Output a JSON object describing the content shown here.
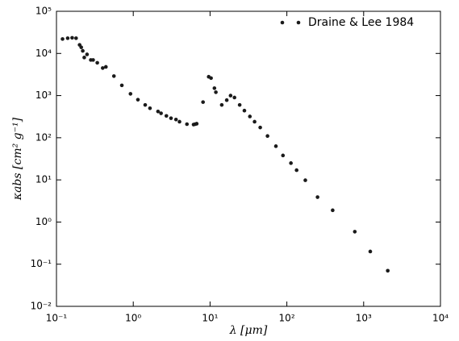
{
  "chart_data": {
    "type": "scatter",
    "xlabel": "λ [μm]",
    "ylabel": "κabs [cm² g⁻¹]",
    "log_x": true,
    "log_y": true,
    "legend": "upper right",
    "series": [
      {
        "name": "Draine & Lee 1984",
        "color": "#1a1a1a",
        "x": [
          0.12,
          0.14,
          0.16,
          0.18,
          0.2,
          0.21,
          0.22,
          0.23,
          0.25,
          0.28,
          0.3,
          0.34,
          0.4,
          0.44,
          0.56,
          0.71,
          0.92,
          1.15,
          1.43,
          1.65,
          2.1,
          2.3,
          2.7,
          3.1,
          3.6,
          4.0,
          5.0,
          6.1,
          6.4,
          6.7,
          8.1,
          9.6,
          10.3,
          11.4,
          11.9,
          14.2,
          16.5,
          18.5,
          20.8,
          24.3,
          28,
          33,
          38,
          45,
          56,
          72,
          89,
          113,
          134,
          174,
          251,
          395,
          767,
          1220,
          2060
        ],
        "values": [
          22000,
          23000,
          23500,
          23000,
          16000,
          14000,
          11500,
          8000,
          9500,
          7000,
          7000,
          6000,
          4500,
          4800,
          2900,
          1750,
          1100,
          800,
          600,
          500,
          420,
          380,
          330,
          290,
          270,
          240,
          210,
          205,
          210,
          215,
          700,
          2800,
          2600,
          1500,
          1200,
          600,
          780,
          1000,
          900,
          600,
          440,
          320,
          240,
          175,
          110,
          63,
          38,
          25,
          17,
          9.8,
          3.9,
          1.9,
          0.59,
          0.2,
          0.07
        ]
      }
    ],
    "xlim": [
      0.1,
      10000
    ],
    "xticks": [
      {
        "value": 0.1,
        "label": "10⁻¹"
      },
      {
        "value": 1,
        "label": "10⁰"
      },
      {
        "value": 10,
        "label": "10¹"
      },
      {
        "value": 100,
        "label": "10²"
      },
      {
        "value": 1000,
        "label": "10³"
      },
      {
        "value": 10000,
        "label": "10⁴"
      }
    ],
    "ylim": [
      0.01,
      100000
    ],
    "yticks": [
      {
        "value": 0.01,
        "label": "10⁻²"
      },
      {
        "value": 0.1,
        "label": "10⁻¹"
      },
      {
        "value": 1,
        "label": "10⁰"
      },
      {
        "value": 10,
        "label": "10¹"
      },
      {
        "value": 100,
        "label": "10²"
      },
      {
        "value": 1000,
        "label": "10³"
      },
      {
        "value": 10000,
        "label": "10⁴"
      },
      {
        "value": 100000,
        "label": "10⁵"
      }
    ]
  }
}
